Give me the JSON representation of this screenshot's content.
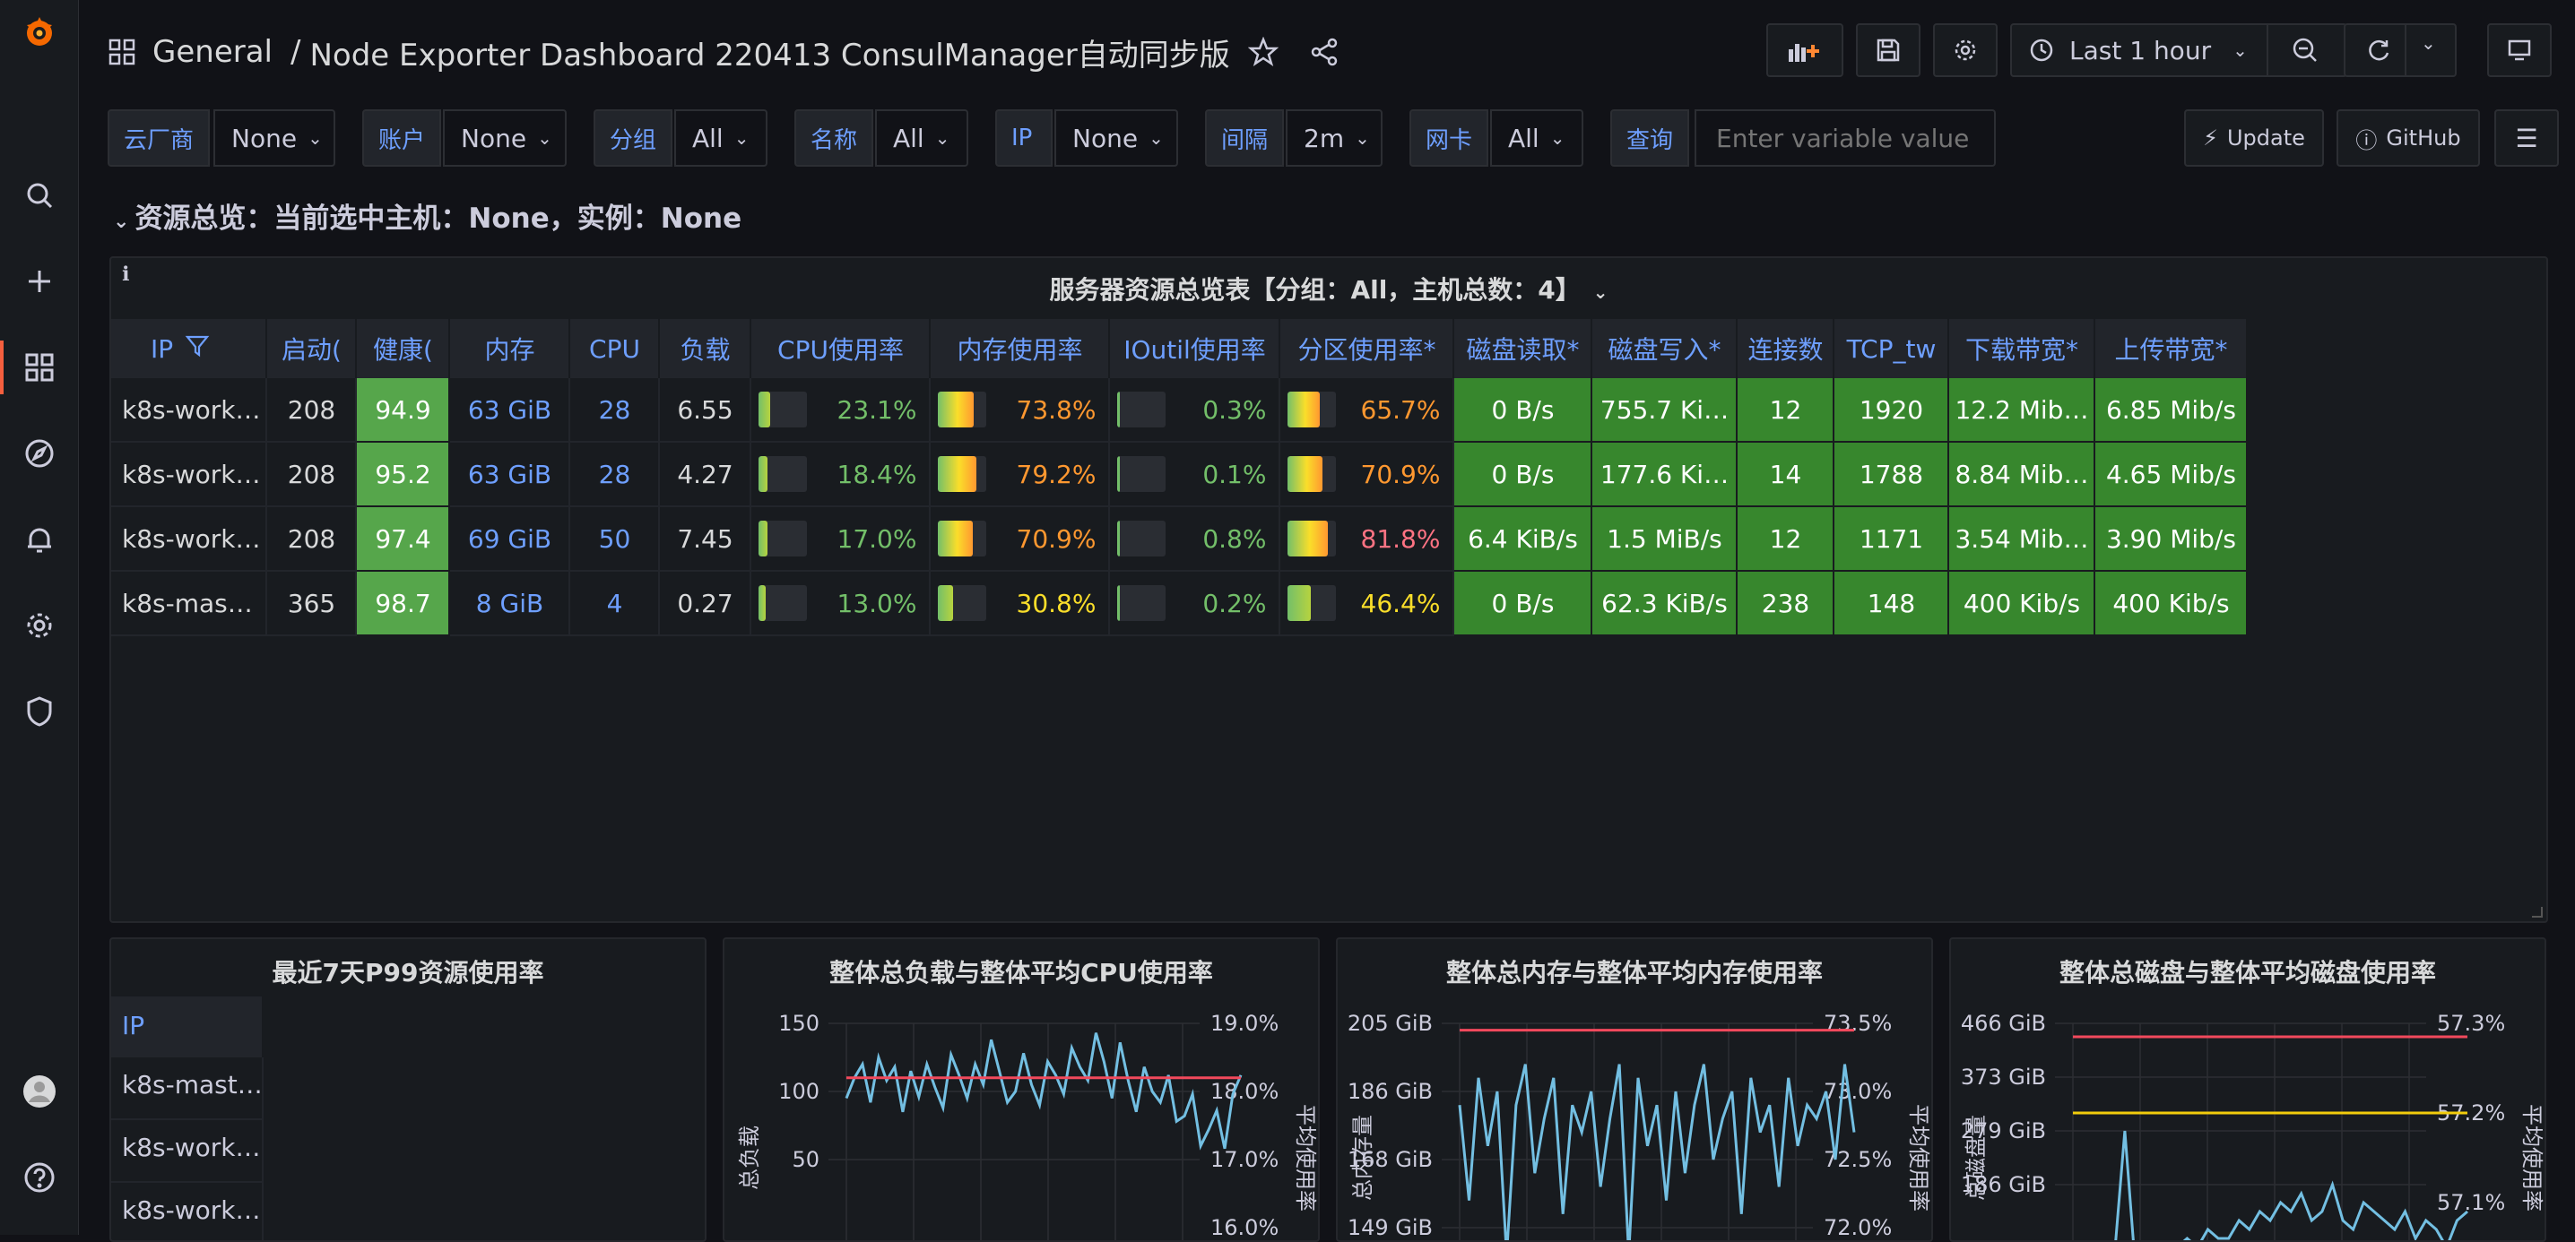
{
  "breadcrumb": {
    "folder": "General",
    "separator": "/",
    "dashboard": "Node Exporter Dashboard 220413 ConsulManager自动同步版"
  },
  "toolbar": {
    "time_range": "Last 1 hour"
  },
  "variables": [
    {
      "label": "云厂商",
      "value": "None"
    },
    {
      "label": "账户",
      "value": "None"
    },
    {
      "label": "分组",
      "value": "All"
    },
    {
      "label": "名称",
      "value": "All"
    },
    {
      "label": "IP",
      "value": "None"
    },
    {
      "label": "间隔",
      "value": "2m"
    },
    {
      "label": "网卡",
      "value": "All"
    }
  ],
  "query": {
    "label": "查询",
    "placeholder": "Enter variable value"
  },
  "links": {
    "update": "Update",
    "github": "GitHub"
  },
  "row_title": "资源总览：当前选中主机：None，实例：None",
  "table_panel": {
    "title": "服务器资源总览表【分组：All，主机总数：4】",
    "columns": [
      "IP",
      "启动(",
      "健康(",
      "内存",
      "CPU",
      "负载",
      "CPU使用率",
      "内存使用率",
      "IOutil使用率",
      "分区使用率*",
      "磁盘读取*",
      "磁盘写入*",
      "连接数",
      "TCP_tw",
      "下载带宽*",
      "上传带宽*"
    ],
    "rows": [
      {
        "ip": "k8s-work…",
        "uptime": "208",
        "health": "94.9",
        "mem": "63 GiB",
        "cpu": "28",
        "load": "6.55",
        "cpu_pct": "23.1%",
        "cpu_v": 0.231,
        "mem_pct": "73.8%",
        "mem_v": 0.738,
        "io_pct": "0.3%",
        "io_v": 0.003,
        "part_pct": "65.7%",
        "part_v": 0.657,
        "read": "0 B/s",
        "write": "755.7 Ki…",
        "conn": "12",
        "tcp": "1920",
        "down": "12.2 Mib…",
        "up": "6.85 Mib/s"
      },
      {
        "ip": "k8s-work…",
        "uptime": "208",
        "health": "95.2",
        "mem": "63 GiB",
        "cpu": "28",
        "load": "4.27",
        "cpu_pct": "18.4%",
        "cpu_v": 0.184,
        "mem_pct": "79.2%",
        "mem_v": 0.792,
        "io_pct": "0.1%",
        "io_v": 0.001,
        "part_pct": "70.9%",
        "part_v": 0.709,
        "read": "0 B/s",
        "write": "177.6 Ki…",
        "conn": "14",
        "tcp": "1788",
        "down": "8.84 Mib…",
        "up": "4.65 Mib/s"
      },
      {
        "ip": "k8s-work…",
        "uptime": "208",
        "health": "97.4",
        "mem": "69 GiB",
        "cpu": "50",
        "load": "7.45",
        "cpu_pct": "17.0%",
        "cpu_v": 0.17,
        "mem_pct": "70.9%",
        "mem_v": 0.709,
        "io_pct": "0.8%",
        "io_v": 0.008,
        "part_pct": "81.8%",
        "part_v": 0.818,
        "read": "6.4 KiB/s",
        "write": "1.5 MiB/s",
        "conn": "12",
        "tcp": "1171",
        "down": "3.54 Mib…",
        "up": "3.90 Mib/s"
      },
      {
        "ip": "k8s-mas…",
        "uptime": "365",
        "health": "98.7",
        "mem": "8 GiB",
        "cpu": "4",
        "load": "0.27",
        "cpu_pct": "13.0%",
        "cpu_v": 0.13,
        "mem_pct": "30.8%",
        "mem_v": 0.308,
        "io_pct": "0.2%",
        "io_v": 0.002,
        "part_pct": "46.4%",
        "part_v": 0.464,
        "read": "0 B/s",
        "write": "62.3 KiB/s",
        "conn": "238",
        "tcp": "148",
        "down": "400 Kib/s",
        "up": "400 Kib/s"
      }
    ]
  },
  "p99_panel": {
    "title": "最近7天P99资源使用率",
    "header": "IP",
    "rows": [
      "k8s-mast…",
      "k8s-work…",
      "k8s-work…"
    ]
  },
  "chart_data": [
    {
      "type": "line",
      "title": "整体总负载与整体平均CPU使用率",
      "ylabel": "总负载",
      "y2label": "平均使用率",
      "y_ticks": [
        "150",
        "100",
        "50"
      ],
      "y2_ticks": [
        "19.0%",
        "18.0%",
        "17.0%",
        "16.0%"
      ],
      "series": [
        {
          "color": "#73bfe2",
          "values": [
            95,
            110,
            120,
            92,
            125,
            108,
            118,
            85,
            115,
            96,
            120,
            103,
            88,
            127,
            112,
            95,
            120,
            105,
            138,
            115,
            92,
            100,
            128,
            105,
            90,
            122,
            112,
            98,
            132,
            118,
            108,
            143,
            122,
            95,
            136,
            108,
            85,
            118,
            100,
            92,
            112,
            78,
            82,
            98,
            60,
            72,
            86,
            58,
            98,
            112
          ]
        },
        {
          "color": "#f2495c",
          "values": [
            110,
            110,
            110,
            110,
            110,
            110,
            110,
            110,
            110,
            110,
            110,
            110,
            110,
            110,
            110,
            110,
            110,
            110,
            110,
            110,
            110,
            110,
            110,
            110,
            110,
            110,
            110,
            110,
            110,
            110
          ]
        }
      ]
    },
    {
      "type": "line",
      "title": "整体总内存与整体平均内存使用率",
      "ylabel": "总内存量",
      "y2label": "平均使用率",
      "y_ticks": [
        "205 GiB",
        "186 GiB",
        "168 GiB",
        "149 GiB"
      ],
      "y2_ticks": [
        "73.5%",
        "73.0%",
        "72.5%",
        "72.0%"
      ],
      "series": [
        {
          "color": "#73bfe2",
          "values": [
            72.9,
            72.2,
            73.1,
            72.6,
            73.0,
            71.8,
            72.9,
            73.2,
            72.4,
            72.8,
            73.1,
            72.1,
            72.9,
            72.7,
            73.0,
            72.3,
            72.8,
            73.2,
            71.8,
            73.1,
            72.6,
            72.9,
            72.2,
            73.0,
            72.4,
            72.9,
            73.2,
            72.5,
            72.8,
            73.0,
            72.1,
            73.1,
            72.7,
            72.9,
            72.3,
            73.1,
            72.6,
            72.9,
            72.8,
            73.0,
            72.5,
            73.2,
            72.7
          ]
        },
        {
          "color": "#f2495c",
          "values": [
            73.45,
            73.45,
            73.45,
            73.45,
            73.45,
            73.45,
            73.45,
            73.45,
            73.45,
            73.45
          ]
        }
      ]
    },
    {
      "type": "line",
      "title": "整体总磁盘与整体平均磁盘使用率",
      "ylabel": "总磁盘量",
      "y2label": "平均使用率",
      "y_ticks": [
        "466 GiB",
        "373 GiB",
        "279 GiB",
        "186 GiB"
      ],
      "y2_ticks": [
        "57.3%",
        "57.2%",
        "57.1%"
      ],
      "series": [
        {
          "color": "#73bfe2",
          "values": [
            57.03,
            57.03,
            57.04,
            57.05,
            57.04,
            57.18,
            57.03,
            57.04,
            57.05,
            57.04,
            57.05,
            57.06,
            57.05,
            57.07,
            57.06,
            57.06,
            57.08,
            57.07,
            57.09,
            57.08,
            57.1,
            57.09,
            57.11,
            57.08,
            57.09,
            57.12,
            57.08,
            57.07,
            57.1,
            57.09,
            57.08,
            57.07,
            57.09,
            57.06,
            57.08,
            57.07,
            57.05,
            57.08,
            57.09
          ]
        },
        {
          "color": "#f2495c",
          "values": [
            57.285,
            57.285,
            57.285,
            57.285,
            57.285,
            57.285,
            57.285,
            57.285
          ]
        },
        {
          "color": "#f2cc0c",
          "values": [
            57.2,
            57.2,
            57.2,
            57.2,
            57.2,
            57.2,
            57.2,
            57.2
          ]
        }
      ]
    }
  ]
}
